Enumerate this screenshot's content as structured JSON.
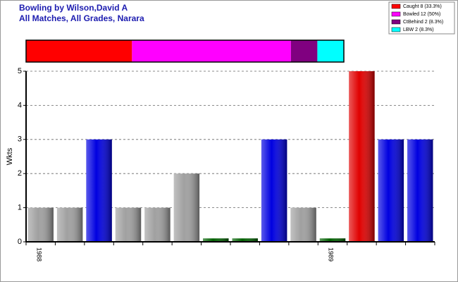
{
  "chart_data": [
    {
      "type": "stacked-share",
      "series": [
        {
          "name": "Caught 8 (33.3%)",
          "color": "#ff0000",
          "values": [
            8
          ]
        },
        {
          "name": "Bowled 12 (50%)",
          "color": "#ff00ff",
          "values": [
            12
          ]
        },
        {
          "name": "CtBehind 2 (8.3%)",
          "color": "#800080",
          "values": [
            2
          ]
        },
        {
          "name": "LBW 2 (8.3%)",
          "color": "#00ffff",
          "values": [
            2
          ]
        }
      ]
    },
    {
      "type": "bar",
      "title": "Bowling by Wilson,David A",
      "subtitle": "All Matches, All Grades, Narara",
      "ylabel": "Wkts",
      "categories": [
        "1988",
        null,
        null,
        null,
        null,
        null,
        null,
        null,
        null,
        null,
        "1989",
        null,
        null,
        null
      ],
      "values": [
        1,
        1,
        3,
        1,
        1,
        2,
        0.1,
        0.1,
        3,
        1,
        0.1,
        5,
        3,
        3
      ],
      "colors": [
        "#a0a0a0",
        "#a0a0a0",
        "#0000e0",
        "#a0a0a0",
        "#a0a0a0",
        "#a0a0a0",
        "#006000",
        "#006000",
        "#0000e0",
        "#a0a0a0",
        "#006000",
        "#e00000",
        "#0000e0",
        "#0000e0"
      ],
      "ylim": [
        0,
        5
      ],
      "yticks": [
        0,
        1,
        2,
        3,
        4,
        5
      ],
      "grid": true
    }
  ]
}
